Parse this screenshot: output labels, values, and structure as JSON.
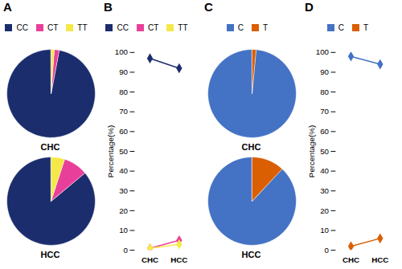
{
  "chart_data": [
    {
      "type": "pie",
      "title": "CHC",
      "annotations": [
        "A"
      ],
      "categories": [
        "CC",
        "CT",
        "TT"
      ],
      "values": [
        97.0,
        1.8,
        1.2
      ],
      "colors": [
        "#1c2d6e",
        "#e8409a",
        "#f5e94a"
      ],
      "legend": "top"
    },
    {
      "type": "pie",
      "title": "HCC",
      "categories": [
        "CC",
        "CT",
        "TT"
      ],
      "values": [
        86.0,
        9.0,
        5.0
      ],
      "colors": [
        "#1c2d6e",
        "#e8409a",
        "#f5e94a"
      ]
    },
    {
      "type": "line",
      "annotations": [
        "B"
      ],
      "categories": [
        "CHC",
        "HCC"
      ],
      "series": [
        {
          "name": "CC",
          "color": "#1c2d6e",
          "marker": "diamond",
          "values": [
            97.0,
            92.0
          ]
        },
        {
          "name": "CT",
          "color": "#e8409a",
          "marker": "diamond",
          "values": [
            1.0,
            5.0
          ]
        },
        {
          "name": "TT",
          "color": "#f5e94a",
          "marker": "diamond",
          "values": [
            1.0,
            3.0
          ]
        }
      ],
      "ylim": [
        0,
        100
      ],
      "yticks": [
        0,
        10,
        20,
        30,
        40,
        50,
        60,
        70,
        80,
        90,
        100
      ],
      "y_label": "Percentage(%)",
      "legend": "top"
    },
    {
      "type": "pie",
      "title": "CHC",
      "annotations": [
        "C"
      ],
      "categories": [
        "C",
        "T"
      ],
      "values": [
        98.5,
        1.5
      ],
      "colors": [
        "#4472c4",
        "#d95f02"
      ],
      "legend": "top"
    },
    {
      "type": "pie",
      "title": "HCC",
      "categories": [
        "C",
        "T"
      ],
      "values": [
        88.0,
        12.0
      ],
      "colors": [
        "#4472c4",
        "#d95f02"
      ]
    },
    {
      "type": "line",
      "annotations": [
        "D"
      ],
      "categories": [
        "CHC",
        "HCC"
      ],
      "series": [
        {
          "name": "C",
          "color": "#4472c4",
          "marker": "diamond",
          "values": [
            98.0,
            94.0
          ]
        },
        {
          "name": "T",
          "color": "#d95f02",
          "marker": "diamond",
          "values": [
            2.0,
            6.0
          ]
        }
      ],
      "ylim": [
        0,
        100
      ],
      "yticks": [
        0,
        10,
        20,
        30,
        40,
        50,
        60,
        70,
        80,
        90,
        100
      ],
      "y_label": "Percentage(%)",
      "legend": "top"
    }
  ]
}
